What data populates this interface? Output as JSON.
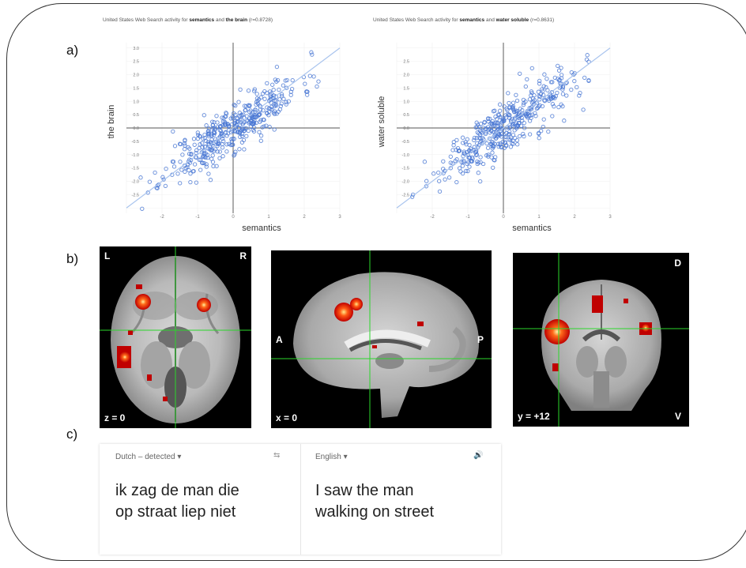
{
  "panels": {
    "a": "a)",
    "b": "b)",
    "c": "c)"
  },
  "chart_data": [
    {
      "type": "scatter",
      "title_prefix": "United States Web Search activity for ",
      "title_bold_1": "semantics",
      "title_mid": " and ",
      "title_bold_2": "the brain",
      "title_suffix": " (r=0.8728)",
      "xlabel": "semantics",
      "ylabel": "the brain",
      "xlim": [
        -3,
        3
      ],
      "ylim": [
        -3.2,
        3.2
      ],
      "xticks": [
        "-2",
        "-1",
        "0",
        "1",
        "2",
        "3"
      ],
      "yticks": [
        "3.0",
        "2.5",
        "2.0",
        "1.5",
        "1.0",
        "0.5",
        "0.0",
        "-0.5",
        "-1.0",
        "-1.5",
        "-2.0",
        "-2.5"
      ],
      "r": 0.8728,
      "color": "#4a78d4",
      "seed": 11
    },
    {
      "type": "scatter",
      "title_prefix": "United States Web Search activity for ",
      "title_bold_1": "semantics",
      "title_mid": " and ",
      "title_bold_2": "water soluble",
      "title_suffix": " (r=0.8631)",
      "xlabel": "semantics",
      "ylabel": "water soluble",
      "xlim": [
        -3,
        3
      ],
      "ylim": [
        -3.2,
        3.2
      ],
      "xticks": [
        "-2",
        "-1",
        "0",
        "1",
        "2",
        "3"
      ],
      "yticks": [
        "2.5",
        "2.0",
        "1.5",
        "1.0",
        "0.5",
        "0.0",
        "-0.5",
        "-1.0",
        "-1.5",
        "-2.0",
        "-2.5"
      ],
      "r": 0.8631,
      "color": "#4a78d4",
      "seed": 29
    }
  ],
  "brain_views": {
    "axial": {
      "left_label": "L",
      "right_label": "R",
      "slice": "z = 0"
    },
    "sagittal": {
      "ant_label": "A",
      "post_label": "P",
      "slice": "x = 0"
    },
    "coronal": {
      "top_label": "D",
      "bottom_label": "V",
      "slice": "y = +12"
    }
  },
  "translation": {
    "source_lang": "Dutch – detected ▾",
    "target_lang": "English ▾",
    "source_text_line1": "ik zag de man die",
    "source_text_line2": "op straat liep niet",
    "target_text_line1": "I saw the man",
    "target_text_line2": "walking on street",
    "swap_icon": "⇆",
    "speaker_icon": "🔊"
  }
}
